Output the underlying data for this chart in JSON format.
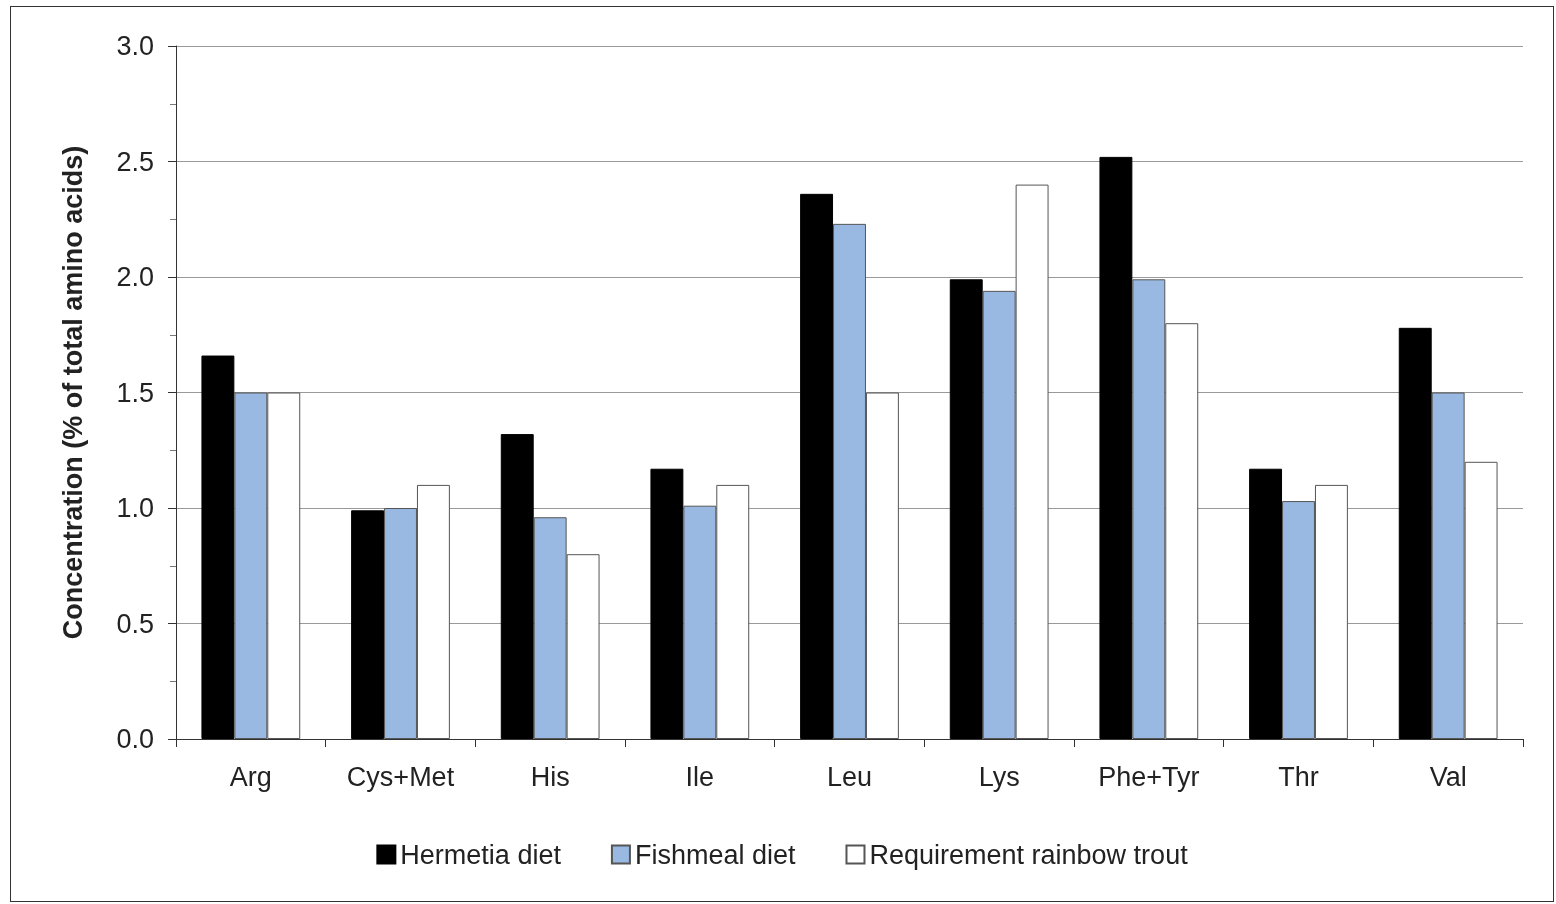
{
  "chart_data": {
    "type": "bar",
    "ylabel": "Concentration (% of total amino acids)",
    "categories": [
      "Arg",
      "Cys+Met",
      "His",
      "Ile",
      "Leu",
      "Lys",
      "Phe+Tyr",
      "Thr",
      "Val"
    ],
    "series": [
      {
        "name": "Hermetia diet",
        "color": "#000000",
        "values": [
          1.66,
          0.99,
          1.32,
          1.17,
          2.36,
          1.99,
          2.52,
          1.17,
          1.78
        ]
      },
      {
        "name": "Fishmeal diet",
        "color": "#99b9e3",
        "values": [
          1.5,
          1.0,
          0.96,
          1.01,
          2.23,
          1.94,
          1.99,
          1.03,
          1.5
        ]
      },
      {
        "name": "Requirement rainbow trout",
        "color": "#ffffff",
        "values": [
          1.5,
          1.1,
          0.8,
          1.1,
          1.5,
          2.4,
          1.8,
          1.1,
          1.2
        ]
      }
    ],
    "ylim": [
      0,
      3
    ],
    "yticks": [
      {
        "value": 0,
        "label": "0.0"
      },
      {
        "value": 0.5,
        "label": "0.5"
      },
      {
        "value": 1,
        "label": "1.0"
      },
      {
        "value": 1.5,
        "label": "1.5"
      },
      {
        "value": 2,
        "label": "2.0"
      },
      {
        "value": 2.5,
        "label": "2.5"
      },
      {
        "value": 3,
        "label": "3.0"
      }
    ],
    "grid": "y",
    "legend": "bottom"
  }
}
